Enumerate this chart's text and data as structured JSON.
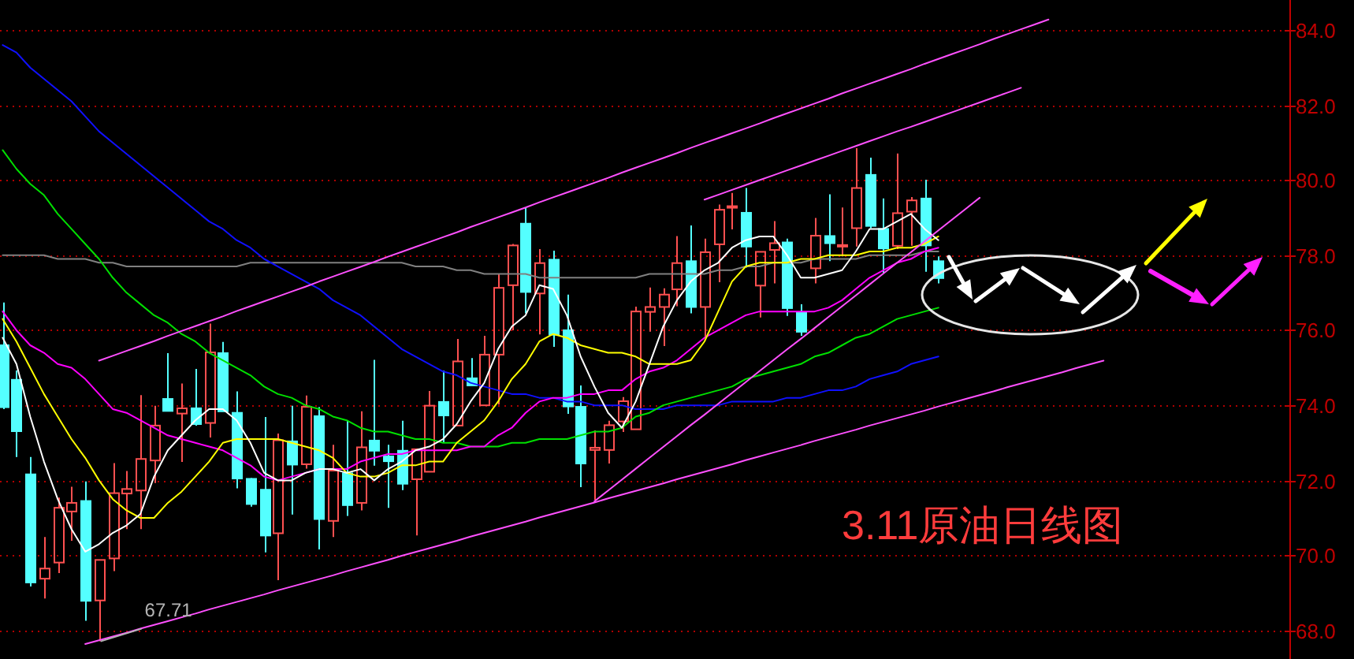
{
  "chart_data": {
    "type": "candlestick",
    "title": "3.11原油日线图",
    "categories": [
      null,
      null,
      null,
      null,
      null,
      null,
      null,
      null,
      null,
      null,
      null,
      null,
      null,
      null,
      null,
      null,
      null,
      null,
      null,
      null,
      null,
      null,
      null,
      null,
      null,
      null,
      null,
      null,
      null,
      null,
      null,
      null,
      null,
      null,
      null,
      null,
      null,
      null,
      null,
      null,
      null,
      null,
      null,
      null,
      null,
      null,
      null,
      null,
      null,
      null,
      null,
      null,
      null,
      null,
      null,
      null,
      null,
      null,
      null,
      null,
      null,
      null,
      null,
      null,
      null,
      null,
      null,
      null,
      null,
      null,
      null,
      null,
      null,
      null,
      null,
      null,
      null,
      null,
      null,
      null,
      null
    ],
    "ohlc": [
      [
        75.6,
        76.74,
        73.9,
        73.95
      ],
      [
        74.68,
        74.93,
        72.62,
        73.31
      ],
      [
        72.16,
        72.62,
        69.17,
        69.28
      ],
      [
        69.38,
        70.49,
        68.85,
        69.65
      ],
      [
        69.81,
        71.54,
        69.53,
        71.27
      ],
      [
        71.17,
        71.83,
        70.39,
        71.4
      ],
      [
        71.45,
        71.97,
        68.26,
        68.79
      ],
      [
        68.8,
        69.88,
        67.71,
        69.88
      ],
      [
        69.92,
        72.46,
        69.58,
        71.66
      ],
      [
        71.65,
        72.25,
        70.7,
        71.77
      ],
      [
        71.73,
        74.27,
        70.7,
        72.57
      ],
      [
        72.53,
        73.99,
        71.93,
        73.46
      ],
      [
        74.17,
        75.39,
        73.85,
        73.85
      ],
      [
        73.78,
        74.58,
        72.49,
        73.92
      ],
      [
        73.92,
        74.97,
        73.46,
        73.5
      ],
      [
        73.53,
        76.18,
        73.14,
        75.41
      ],
      [
        75.39,
        75.69,
        73.84,
        73.84
      ],
      [
        73.8,
        74.37,
        71.79,
        72.05
      ],
      [
        72.04,
        72.06,
        71.3,
        71.37
      ],
      [
        71.75,
        73.69,
        70.08,
        70.53
      ],
      [
        70.59,
        73.25,
        69.34,
        73.07
      ],
      [
        73.04,
        73.99,
        71.09,
        72.42
      ],
      [
        72.43,
        74.26,
        72.31,
        73.96
      ],
      [
        73.71,
        73.95,
        70.16,
        70.97
      ],
      [
        70.92,
        72.95,
        70.49,
        72.26
      ],
      [
        72.19,
        73.6,
        71.05,
        71.34
      ],
      [
        71.4,
        73.84,
        71.2,
        72.88
      ],
      [
        73.06,
        75.21,
        72.39,
        72.79
      ],
      [
        72.64,
        72.95,
        71.27,
        72.51
      ],
      [
        72.79,
        73.59,
        71.74,
        71.91
      ],
      [
        72.03,
        72.83,
        70.53,
        72.83
      ],
      [
        72.23,
        74.38,
        72.23,
        73.99
      ],
      [
        74.09,
        74.93,
        73.0,
        73.73
      ],
      [
        73.46,
        75.77,
        73.46,
        75.17
      ],
      [
        74.72,
        75.26,
        74.53,
        74.53
      ],
      [
        74.0,
        75.85,
        74.0,
        75.35
      ],
      [
        75.35,
        77.51,
        74.02,
        77.13
      ],
      [
        77.2,
        78.3,
        76.0,
        78.26
      ],
      [
        78.84,
        79.26,
        76.45,
        77.02
      ],
      [
        76.98,
        78.16,
        75.89,
        77.79
      ],
      [
        77.88,
        78.12,
        75.56,
        75.88
      ],
      [
        76.0,
        76.95,
        73.77,
        73.97
      ],
      [
        73.96,
        74.53,
        71.82,
        72.45
      ],
      [
        72.81,
        73.33,
        71.48,
        72.87
      ],
      [
        72.81,
        73.59,
        72.45,
        73.47
      ],
      [
        73.57,
        74.22,
        73.29,
        74.11
      ],
      [
        73.36,
        76.63,
        73.36,
        76.5
      ],
      [
        76.49,
        77.14,
        75.96,
        76.62
      ],
      [
        76.62,
        77.12,
        75.58,
        76.95
      ],
      [
        77.09,
        78.51,
        76.64,
        77.79
      ],
      [
        77.84,
        78.79,
        76.45,
        76.62
      ],
      [
        76.62,
        78.44,
        75.82,
        78.08
      ],
      [
        78.29,
        79.35,
        77.28,
        79.21
      ],
      [
        79.27,
        79.66,
        78.69,
        79.3
      ],
      [
        79.13,
        79.79,
        77.67,
        78.23
      ],
      [
        77.19,
        78.09,
        76.34,
        78.09
      ],
      [
        78.14,
        78.91,
        77.25,
        78.32
      ],
      [
        78.34,
        78.44,
        76.38,
        76.59
      ],
      [
        76.47,
        76.69,
        75.85,
        75.96
      ],
      [
        77.65,
        78.99,
        77.25,
        78.52
      ],
      [
        78.51,
        79.62,
        77.84,
        78.32
      ],
      [
        78.23,
        79.27,
        77.97,
        78.27
      ],
      [
        78.72,
        80.85,
        78.23,
        79.79
      ],
      [
        80.14,
        80.6,
        78.72,
        78.78
      ],
      [
        78.7,
        79.51,
        77.53,
        78.18
      ],
      [
        78.25,
        80.71,
        78.16,
        79.12
      ],
      [
        79.16,
        79.55,
        78.25,
        79.46
      ],
      [
        79.51,
        80.01,
        77.56,
        78.26
      ],
      [
        77.84,
        77.97,
        77.25,
        77.39
      ],
      null,
      null,
      null,
      null,
      null,
      null,
      null,
      null,
      null,
      null,
      null,
      null
    ],
    "colors": [
      "#54ffff",
      "#54ffff",
      "#54ffff",
      "#ff5050",
      "#ff5050",
      "#ff5050",
      "#54ffff",
      "#ff5050",
      "#ff5050",
      "#ff5050",
      "#ff5050",
      "#ff5050",
      "#54ffff",
      "#ff5050",
      "#54ffff",
      "#ff5050",
      "#54ffff",
      "#54ffff",
      "#54ffff",
      "#54ffff",
      "#ff5050",
      "#54ffff",
      "#ff5050",
      "#54ffff",
      "#ff5050",
      "#54ffff",
      "#ff5050",
      "#54ffff",
      "#54ffff",
      "#54ffff",
      "#ff5050",
      "#ff5050",
      "#54ffff",
      "#ff5050",
      "#54ffff",
      "#ff5050",
      "#ff5050",
      "#ff5050",
      "#54ffff",
      "#ff5050",
      "#54ffff",
      "#54ffff",
      "#54ffff",
      "#ff5050",
      "#ff5050",
      "#ff5050",
      "#ff5050",
      "#ff5050",
      "#ff5050",
      "#ff5050",
      "#54ffff",
      "#ff5050",
      "#ff5050",
      "#ff5050",
      "#54ffff",
      "#ff5050",
      "#ff5050",
      "#54ffff",
      "#54ffff",
      "#ff5050",
      "#54ffff",
      "#ff5050",
      "#ff5050",
      "#54ffff",
      "#54ffff",
      "#ff5050",
      "#ff5050",
      "#54ffff",
      "#54ffff",
      null,
      null,
      null,
      null,
      null,
      null,
      null,
      null,
      null,
      null,
      null,
      null
    ],
    "series": [
      {
        "type": "line",
        "color": "#808080",
        "values": [
          78.0,
          78.0,
          78.0,
          78.0,
          77.9,
          77.9,
          77.9,
          77.8,
          77.8,
          77.7,
          77.7,
          77.7,
          77.7,
          77.7,
          77.7,
          77.7,
          77.7,
          77.7,
          77.8,
          77.8,
          77.8,
          77.8,
          77.8,
          77.8,
          77.8,
          77.8,
          77.8,
          77.8,
          77.8,
          77.8,
          77.7,
          77.7,
          77.7,
          77.6,
          77.6,
          77.5,
          77.5,
          77.5,
          77.5,
          77.4,
          77.4,
          77.4,
          77.4,
          77.4,
          77.4,
          77.4,
          77.4,
          77.5,
          77.5,
          77.5,
          77.5,
          77.5,
          77.6,
          77.6,
          77.7,
          77.7,
          77.8,
          77.8,
          77.8,
          77.9,
          77.9,
          77.9,
          77.9,
          78.0,
          78.0,
          78.0,
          78.0,
          78.1,
          78.1,
          null,
          null,
          null,
          null,
          null,
          null,
          null,
          null,
          null,
          null,
          null,
          null
        ]
      },
      {
        "type": "line",
        "color": "#1010ff",
        "values": [
          83.6,
          83.4,
          83.0,
          82.7,
          82.4,
          82.1,
          81.7,
          81.3,
          81.0,
          80.7,
          80.4,
          80.1,
          79.8,
          79.5,
          79.2,
          78.9,
          78.7,
          78.4,
          78.2,
          77.9,
          77.7,
          77.5,
          77.3,
          77.1,
          76.8,
          76.6,
          76.4,
          76.1,
          75.8,
          75.5,
          75.3,
          75.1,
          74.9,
          74.8,
          74.6,
          74.5,
          74.4,
          74.3,
          74.3,
          74.2,
          74.2,
          74.1,
          74.1,
          74.0,
          74.0,
          74.0,
          73.9,
          73.9,
          73.9,
          74.0,
          74.0,
          74.0,
          74.0,
          74.1,
          74.1,
          74.1,
          74.1,
          74.2,
          74.2,
          74.3,
          74.4,
          74.4,
          74.5,
          74.7,
          74.8,
          74.9,
          75.1,
          75.2,
          75.3,
          null,
          null,
          null,
          null,
          null,
          null,
          null,
          null,
          null,
          null,
          null,
          null
        ]
      },
      {
        "type": "line",
        "color": "#00e000",
        "values": [
          80.8,
          80.3,
          79.9,
          79.6,
          79.1,
          78.7,
          78.3,
          77.9,
          77.4,
          77.0,
          76.7,
          76.4,
          76.2,
          75.9,
          75.7,
          75.4,
          75.2,
          75.0,
          74.8,
          74.5,
          74.3,
          74.2,
          74.0,
          73.9,
          73.7,
          73.6,
          73.4,
          73.3,
          73.3,
          73.2,
          73.1,
          73.1,
          73.0,
          73.0,
          72.9,
          72.9,
          72.9,
          73.0,
          73.0,
          73.1,
          73.1,
          73.1,
          73.2,
          73.3,
          73.3,
          73.4,
          73.7,
          73.8,
          74.0,
          74.1,
          74.2,
          74.3,
          74.4,
          74.5,
          74.7,
          74.8,
          74.9,
          75.0,
          75.1,
          75.3,
          75.4,
          75.6,
          75.8,
          75.9,
          76.1,
          76.3,
          76.4,
          76.5,
          76.6,
          null,
          null,
          null,
          null,
          null,
          null,
          null,
          null,
          null,
          null,
          null,
          null
        ]
      },
      {
        "type": "line",
        "color": "#ff00ff",
        "values": [
          76.5,
          76.0,
          75.6,
          75.4,
          75.1,
          75.0,
          74.7,
          74.3,
          73.9,
          73.8,
          73.6,
          73.4,
          73.2,
          73.1,
          73.0,
          72.9,
          72.8,
          72.6,
          72.4,
          72.1,
          72.0,
          72.1,
          72.2,
          72.3,
          72.3,
          72.3,
          72.5,
          72.6,
          72.7,
          72.7,
          72.8,
          72.8,
          72.8,
          72.8,
          72.9,
          72.9,
          73.2,
          73.4,
          73.8,
          74.1,
          74.2,
          74.2,
          74.3,
          74.3,
          74.4,
          74.4,
          74.7,
          74.9,
          75.0,
          75.2,
          75.5,
          75.8,
          76.0,
          76.2,
          76.4,
          76.5,
          76.5,
          76.5,
          76.5,
          76.5,
          76.6,
          76.8,
          77.1,
          77.4,
          77.6,
          77.8,
          77.9,
          78.1,
          78.2,
          null,
          null,
          null,
          null,
          null,
          null,
          null,
          null,
          null,
          null,
          null,
          null
        ]
      },
      {
        "type": "line",
        "color": "#ffff00",
        "values": [
          76.3,
          75.7,
          75.0,
          74.3,
          73.7,
          73.1,
          72.6,
          72.0,
          71.5,
          71.2,
          71.0,
          71.0,
          71.4,
          71.7,
          72.1,
          72.5,
          73.0,
          73.1,
          73.1,
          73.1,
          73.1,
          73.0,
          72.9,
          72.8,
          72.6,
          72.2,
          72.1,
          72.1,
          72.2,
          72.4,
          72.4,
          72.5,
          72.5,
          73.0,
          73.3,
          73.6,
          74.1,
          74.7,
          75.1,
          75.7,
          75.9,
          75.8,
          75.6,
          75.5,
          75.4,
          75.4,
          75.3,
          75.1,
          75.1,
          75.1,
          75.2,
          75.7,
          76.5,
          77.3,
          77.7,
          77.8,
          77.8,
          77.8,
          77.9,
          77.9,
          78.0,
          78.0,
          78.0,
          78.1,
          78.1,
          78.2,
          78.2,
          78.3,
          78.5,
          null,
          null,
          null,
          null,
          null,
          null,
          null,
          null,
          null,
          null,
          null,
          null
        ]
      },
      {
        "type": "line",
        "color": "#ffffff",
        "values": [
          75.8,
          75.1,
          73.7,
          72.5,
          71.5,
          70.7,
          70.1,
          70.3,
          70.6,
          70.8,
          71.1,
          72.1,
          72.8,
          73.2,
          73.6,
          73.9,
          73.9,
          73.6,
          73.0,
          72.2,
          72.0,
          72.0,
          72.2,
          72.3,
          72.3,
          72.2,
          72.3,
          72.0,
          72.3,
          72.5,
          72.8,
          72.9,
          73.1,
          73.5,
          74.1,
          74.6,
          75.5,
          76.1,
          76.4,
          77.2,
          77.1,
          76.4,
          75.3,
          74.5,
          73.8,
          73.4,
          74.1,
          75.1,
          76.1,
          76.8,
          77.3,
          77.6,
          77.8,
          78.2,
          78.4,
          78.5,
          78.5,
          78.0,
          77.4,
          77.4,
          77.5,
          77.6,
          78.1,
          78.7,
          78.7,
          78.9,
          79.1,
          78.7,
          78.4,
          null,
          null,
          null,
          null,
          null,
          null,
          null,
          null,
          null,
          null,
          null,
          null
        ]
      },
      {
        "type": "line",
        "color": "#ff50ff",
        "values": [
          null,
          null,
          null,
          null,
          null,
          null,
          null,
          75.19,
          75.32,
          75.45,
          75.58,
          75.71,
          75.85,
          75.98,
          76.11,
          76.24,
          76.37,
          76.51,
          76.64,
          76.77,
          76.9,
          77.03,
          77.16,
          77.3,
          77.43,
          77.56,
          77.69,
          77.82,
          77.96,
          78.09,
          78.22,
          78.35,
          78.48,
          78.61,
          78.75,
          78.88,
          79.01,
          79.14,
          79.27,
          79.41,
          79.54,
          79.67,
          79.8,
          79.93,
          80.06,
          80.2,
          80.33,
          80.46,
          80.59,
          80.72,
          80.86,
          80.99,
          81.12,
          81.25,
          81.38,
          81.51,
          81.65,
          81.78,
          81.91,
          82.04,
          82.17,
          82.31,
          82.44,
          82.57,
          82.7,
          82.83,
          82.96,
          83.1,
          83.23,
          83.36,
          83.49,
          83.62,
          83.76,
          83.89,
          84.02,
          84.15,
          84.28,
          null,
          null,
          null,
          null
        ]
      },
      {
        "type": "line",
        "color": "#ff50ff",
        "values": [
          null,
          null,
          null,
          null,
          null,
          null,
          null,
          null,
          null,
          null,
          null,
          null,
          null,
          null,
          null,
          null,
          null,
          null,
          null,
          null,
          null,
          null,
          null,
          null,
          null,
          null,
          null,
          null,
          null,
          null,
          null,
          null,
          null,
          null,
          null,
          null,
          null,
          null,
          null,
          null,
          null,
          null,
          null,
          null,
          null,
          null,
          null,
          null,
          null,
          null,
          null,
          79.48,
          79.61,
          79.74,
          79.87,
          80.0,
          80.13,
          80.26,
          80.39,
          80.52,
          80.65,
          80.78,
          80.91,
          81.04,
          81.17,
          81.3,
          81.42,
          81.55,
          81.68,
          81.81,
          81.94,
          82.07,
          82.2,
          82.33,
          82.46,
          null,
          null,
          null,
          null,
          null,
          null
        ]
      },
      {
        "type": "line",
        "color": "#ff50ff",
        "values": [
          null,
          null,
          null,
          null,
          null,
          null,
          67.64,
          67.74,
          67.84,
          67.94,
          68.05,
          68.15,
          68.25,
          68.35,
          68.45,
          68.56,
          68.66,
          68.76,
          68.86,
          68.96,
          69.07,
          69.17,
          69.27,
          69.37,
          69.47,
          69.58,
          69.68,
          69.78,
          69.88,
          69.99,
          70.09,
          70.19,
          70.29,
          70.39,
          70.5,
          70.6,
          70.7,
          70.8,
          70.9,
          71.01,
          71.11,
          71.21,
          71.31,
          71.41,
          71.52,
          71.62,
          71.72,
          71.82,
          71.92,
          72.03,
          72.13,
          72.23,
          72.33,
          72.43,
          72.54,
          72.64,
          72.74,
          72.84,
          72.94,
          73.05,
          73.15,
          73.25,
          73.35,
          73.46,
          73.56,
          73.66,
          73.76,
          73.86,
          73.97,
          74.07,
          74.17,
          74.27,
          74.37,
          74.48,
          74.58,
          74.68,
          74.78,
          74.88,
          74.99,
          75.09,
          75.19
        ]
      },
      {
        "type": "line",
        "color": "#ff50ff",
        "values": [
          null,
          null,
          null,
          null,
          null,
          null,
          null,
          null,
          null,
          null,
          null,
          null,
          null,
          null,
          null,
          null,
          null,
          null,
          null,
          null,
          null,
          null,
          null,
          null,
          null,
          null,
          null,
          null,
          null,
          null,
          null,
          null,
          null,
          null,
          null,
          null,
          null,
          null,
          null,
          null,
          null,
          null,
          null,
          71.44,
          71.73,
          72.02,
          72.31,
          72.6,
          72.89,
          73.18,
          73.47,
          73.75,
          74.04,
          74.33,
          74.62,
          74.91,
          75.2,
          75.49,
          75.77,
          76.06,
          76.35,
          76.64,
          76.93,
          77.22,
          77.51,
          77.8,
          78.08,
          78.37,
          78.66,
          78.95,
          79.24,
          79.53,
          null,
          null,
          null,
          null,
          null,
          null,
          null,
          null,
          null
        ]
      }
    ],
    "ylim": [
      67.24,
      84.8
    ],
    "yticks": [
      {
        "value": 68,
        "label": "68.0"
      },
      {
        "value": 70,
        "label": "70.0"
      },
      {
        "value": 72,
        "label": "72.0"
      },
      {
        "value": 74,
        "label": "74.0"
      },
      {
        "value": 76,
        "label": "76.0"
      },
      {
        "value": 78,
        "label": "78.0"
      },
      {
        "value": 80,
        "label": "80.0"
      },
      {
        "value": 82,
        "label": "82.0"
      },
      {
        "value": 84,
        "label": "84.0"
      }
    ],
    "grid": "y",
    "tick_labels": "y",
    "annotations": [
      "67.71"
    ]
  }
}
